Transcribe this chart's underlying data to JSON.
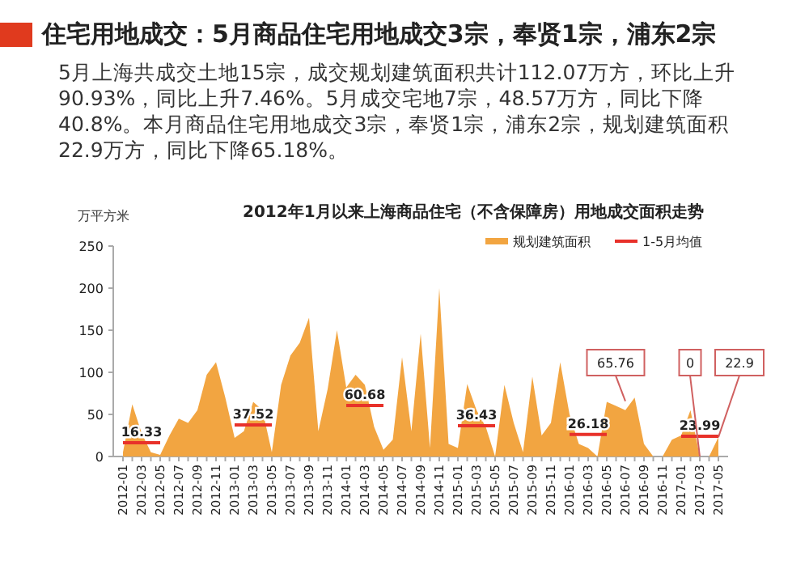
{
  "chart_data": {
    "type": "area",
    "title": "住宅用地成交：5月商品住宅用地成交3宗，奉贤1宗，浦东2宗",
    "annotations": [
      "5月上海共成交土地15宗，成交规划建筑面积共计112.07万方，环比上升90.93%，同比上升7.46%。5月成交宅地7宗，48.57万方，同比下降40.8%。本月商品住宅用地成交3宗，奉贤1宗，浦东2宗，规划建筑面积22.9万方，同比下降65.18%。",
      {
        "text": "65.76",
        "x": "2016-07",
        "y": 65.76
      },
      {
        "text": "0",
        "x": "2017-03",
        "y": 0
      },
      {
        "text": "22.9",
        "x": "2017-05",
        "y": 22.9
      }
    ],
    "subtitle": "2012年1月以来上海商品住宅（不含保障房）用地成交面积走势",
    "ylabel": "万平方米",
    "categories": [
      "2012-01",
      null,
      "2012-03",
      null,
      "2012-05",
      null,
      "2012-07",
      null,
      "2012-09",
      null,
      "2012-11",
      null,
      "2013-01",
      null,
      "2013-03",
      null,
      "2013-05",
      null,
      "2013-07",
      null,
      "2013-09",
      null,
      "2013-11",
      null,
      "2014-01",
      null,
      "2014-03",
      null,
      "2014-05",
      null,
      "2014-07",
      null,
      "2014-09",
      null,
      "2014-11",
      null,
      "2015-01",
      null,
      "2015-03",
      null,
      "2015-05",
      null,
      "2015-07",
      null,
      "2015-09",
      null,
      "2015-11",
      null,
      "2016-01",
      null,
      "2016-03",
      null,
      "2016-05",
      null,
      "2016-07",
      null,
      "2016-09",
      null,
      "2016-11",
      null,
      "2017-01",
      null,
      "2017-03",
      null,
      "2017-05"
    ],
    "series": [
      {
        "name": "规划建筑面积",
        "color": "#f2a541",
        "values": [
          5,
          62,
          28,
          5,
          2,
          25,
          45,
          40,
          55,
          97,
          112,
          70,
          22,
          30,
          65,
          55,
          5,
          85,
          120,
          135,
          165,
          30,
          80,
          150,
          82,
          97,
          85,
          35,
          8,
          20,
          118,
          30,
          146,
          10,
          200,
          15,
          10,
          86,
          55,
          35,
          0,
          85,
          40,
          5,
          95,
          25,
          40,
          112,
          50,
          15,
          10,
          0,
          65,
          60,
          55,
          70,
          15,
          0,
          0,
          20,
          25,
          55,
          0,
          0,
          22.9
        ]
      },
      {
        "name": "1-5月均值",
        "type": "line",
        "color": "#e8312a",
        "values": [
          16.33,
          16.33,
          16.33,
          16.33,
          16.33,
          null,
          null,
          null,
          null,
          null,
          null,
          null,
          37.52,
          37.52,
          37.52,
          37.52,
          37.52,
          null,
          null,
          null,
          null,
          null,
          null,
          null,
          60.68,
          60.68,
          60.68,
          60.68,
          60.68,
          null,
          null,
          null,
          null,
          null,
          null,
          null,
          36.43,
          36.43,
          36.43,
          36.43,
          36.43,
          null,
          null,
          null,
          null,
          null,
          null,
          null,
          26.18,
          26.18,
          26.18,
          26.18,
          26.18,
          null,
          null,
          null,
          null,
          null,
          null,
          null,
          23.99,
          23.99,
          23.99,
          23.99,
          23.99
        ],
        "value_labels": [
          null,
          null,
          "16.33",
          null,
          null,
          null,
          null,
          null,
          null,
          null,
          null,
          null,
          null,
          null,
          "37.52",
          null,
          null,
          null,
          null,
          null,
          null,
          null,
          null,
          null,
          null,
          null,
          "60.68",
          null,
          null,
          null,
          null,
          null,
          null,
          null,
          null,
          null,
          null,
          null,
          "36.43",
          null,
          null,
          null,
          null,
          null,
          null,
          null,
          null,
          null,
          null,
          null,
          "26.18",
          null,
          null,
          null,
          null,
          null,
          null,
          null,
          null,
          null,
          null,
          null,
          "23.99",
          null,
          null
        ]
      }
    ],
    "ylim": [
      0,
      250
    ],
    "yticks": [
      0,
      50,
      100,
      150,
      200,
      250
    ],
    "legend": "top right",
    "grid": false
  }
}
